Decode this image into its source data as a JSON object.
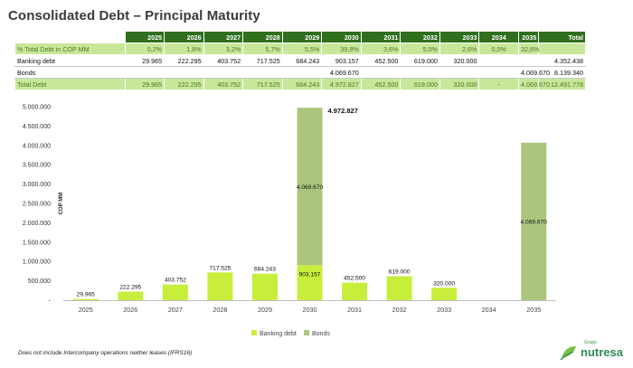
{
  "title": "Consolidated Debt – Principal Maturity",
  "table": {
    "headers": [
      "2025",
      "2026",
      "2027",
      "2028",
      "2029",
      "2030",
      "2031",
      "2032",
      "2033",
      "2034",
      "2035",
      "Total"
    ],
    "rows": [
      {
        "label": "% Total Debt in COP MM",
        "style": "pct",
        "cells": [
          "0,2%",
          "1,8%",
          "3,2%",
          "5,7%",
          "5,5%",
          "39,8%",
          "3,6%",
          "5,0%",
          "2,6%",
          "0,0%",
          "32,6%",
          ""
        ]
      },
      {
        "label": "Banking debt",
        "style": "plain",
        "cells": [
          "29.965",
          "222.295",
          "403.752",
          "717.525",
          "684.243",
          "903.157",
          "452.500",
          "619.000",
          "320.000",
          "",
          "",
          "4.352.438"
        ]
      },
      {
        "label": "Bonds",
        "style": "plain",
        "cells": [
          "",
          "",
          "",
          "",
          "",
          "4.069.670",
          "",
          "",
          "",
          "",
          "4.069.670",
          "8.139.340"
        ]
      },
      {
        "label": "Total Debt",
        "style": "total",
        "cells": [
          "29.965",
          "222.295",
          "403.752",
          "717.525",
          "684.243",
          "4.972.827",
          "452.500",
          "619.000",
          "320.000",
          "-",
          "4.069.670",
          "12.491.778"
        ]
      }
    ]
  },
  "chart_data": {
    "type": "bar",
    "stacked": true,
    "categories": [
      "2025",
      "2026",
      "2027",
      "2028",
      "2029",
      "2030",
      "2031",
      "2032",
      "2033",
      "2034",
      "2035"
    ],
    "series": [
      {
        "name": "Banking debt",
        "color": "#c8ee3c",
        "values": [
          29965,
          222295,
          403752,
          717525,
          684243,
          903157,
          452500,
          619000,
          320000,
          0,
          0
        ],
        "labels": [
          "29.965",
          "222.295",
          "403.752",
          "717.525",
          "684.243",
          "903.157",
          "452.500",
          "619.000",
          "320.000",
          "",
          ""
        ]
      },
      {
        "name": "Bonds",
        "color": "#abc67c",
        "values": [
          0,
          0,
          0,
          0,
          0,
          4069670,
          0,
          0,
          0,
          0,
          4069670
        ],
        "labels": [
          "",
          "",
          "",
          "",
          "",
          "4.069.670",
          "",
          "",
          "",
          "",
          "4.069.670"
        ]
      }
    ],
    "total_annotation": {
      "category": "2030",
      "label": "4.972.827"
    },
    "ylabel": "COP MM",
    "ylim": [
      0,
      5000000
    ],
    "yticks": [
      0,
      500000,
      1000000,
      1500000,
      2000000,
      2500000,
      3000000,
      3500000,
      4000000,
      4500000,
      5000000
    ],
    "ytick_labels": [
      "-",
      "500.000",
      "1.000.000",
      "1.500.000",
      "2.000.000",
      "2.500.000",
      "3.000.000",
      "3.500.000",
      "4.000.000",
      "4.500.000",
      "5.000.000"
    ],
    "grid": false,
    "legend": "bottom"
  },
  "footnote": "Does not include Intercompany operations neither leases (IFRS16)",
  "logo": {
    "small": "Grupo",
    "brand": "nutresa"
  },
  "colors": {
    "header_bg": "#2f6f1e",
    "row_highlight": "#c9e79a",
    "banking": "#c8ee3c",
    "bonds": "#abc67c"
  }
}
